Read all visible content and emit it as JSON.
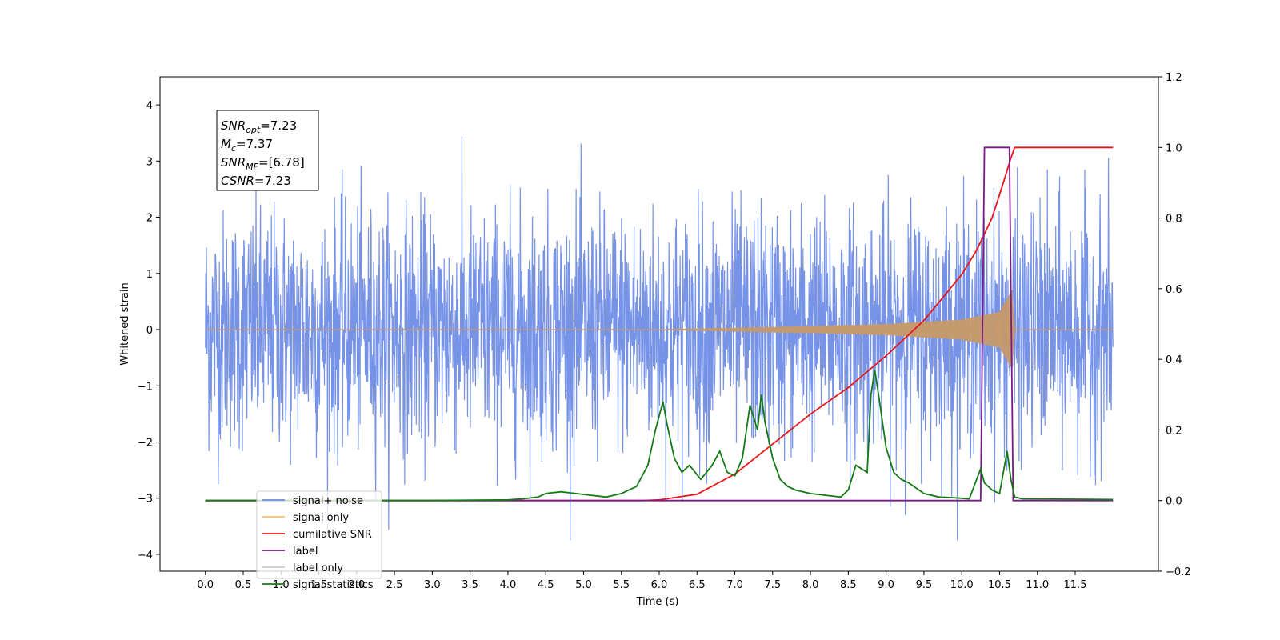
{
  "chart_data": {
    "type": "line",
    "title": "",
    "xlabel": "Time (s)",
    "ylabel": "Whitened strain",
    "x_ticks": [
      "0.0",
      "0.5",
      "1.0",
      "1.5",
      "2.0",
      "2.5",
      "3.0",
      "3.5",
      "4.0",
      "4.5",
      "5.0",
      "5.5",
      "6.0",
      "6.5",
      "7.0",
      "7.5",
      "8.0",
      "8.5",
      "9.0",
      "9.5",
      "10.0",
      "10.5",
      "11.0",
      "11.5"
    ],
    "xlim": [
      -0.6,
      12.6
    ],
    "ylim": [
      -4.3,
      4.5
    ],
    "y_ticks": [
      "4",
      "3",
      "2",
      "1",
      "0",
      "−1",
      "−2",
      "−3",
      "−4"
    ],
    "y2lim": [
      -0.2,
      1.2
    ],
    "y2_ticks": [
      "1.2",
      "1.0",
      "0.8",
      "0.6",
      "0.4",
      "0.2",
      "0.0",
      "−0.2"
    ],
    "grid": false,
    "legend_position": "lower-left",
    "annotation": {
      "lines": [
        {
          "main": "SNR",
          "sub": "opt",
          "rest": "=7.23"
        },
        {
          "main": "M",
          "sub": "c",
          "rest": "=7.37"
        },
        {
          "main": "SNR",
          "sub": "MF",
          "rest": "=[6.78]"
        },
        {
          "main": "CSNR",
          "sub": "",
          "rest": "=7.23"
        }
      ]
    },
    "series": [
      {
        "name": "signal+ noise",
        "color": "#6a8ae6",
        "axis": "left",
        "description_kind": "noise",
        "std": 1.0,
        "x_range": [
          0.0,
          12.0
        ]
      },
      {
        "name": "signal only",
        "color": "#ffbf5e",
        "axis": "left",
        "description_kind": "chirp",
        "envelope": {
          "x": [
            0.0,
            6.0,
            7.0,
            8.0,
            9.0,
            10.0,
            10.5,
            10.67,
            10.7,
            12.0
          ],
          "y": [
            0.0,
            0.005,
            0.03,
            0.06,
            0.1,
            0.18,
            0.32,
            0.72,
            0.0,
            0.0
          ]
        }
      },
      {
        "name": "cumilative SNR",
        "color": "#e8161a",
        "axis": "right",
        "x": [
          0.0,
          5.8,
          6.0,
          6.5,
          7.0,
          7.5,
          8.0,
          8.5,
          9.0,
          9.5,
          10.0,
          10.2,
          10.4,
          10.55,
          10.65,
          10.7,
          12.0
        ],
        "y": [
          0.0,
          0.0,
          0.002,
          0.018,
          0.075,
          0.16,
          0.245,
          0.32,
          0.41,
          0.51,
          0.64,
          0.71,
          0.8,
          0.9,
          0.97,
          1.0,
          1.0
        ]
      },
      {
        "name": "label",
        "color": "#7a1a8a",
        "axis": "right",
        "x": [
          0.0,
          10.25,
          10.3,
          10.63,
          10.68,
          12.0
        ],
        "y": [
          0.0,
          0.0,
          1.0,
          1.0,
          0.0,
          0.0
        ]
      },
      {
        "name": "label only",
        "color": "#d0d0d0",
        "axis": "right",
        "hidden": true,
        "x": [],
        "y": []
      },
      {
        "name": "signal statistics",
        "color": "#147a14",
        "axis": "right",
        "x": [
          0.0,
          3.0,
          4.0,
          4.2,
          4.4,
          4.5,
          4.7,
          4.9,
          5.1,
          5.3,
          5.5,
          5.7,
          5.85,
          5.95,
          6.05,
          6.1,
          6.2,
          6.3,
          6.4,
          6.55,
          6.7,
          6.8,
          6.9,
          7.0,
          7.1,
          7.2,
          7.3,
          7.35,
          7.4,
          7.5,
          7.6,
          7.7,
          7.8,
          8.0,
          8.2,
          8.4,
          8.5,
          8.6,
          8.75,
          8.8,
          8.85,
          8.9,
          9.0,
          9.1,
          9.2,
          9.3,
          9.5,
          9.7,
          9.9,
          10.1,
          10.25,
          10.3,
          10.4,
          10.5,
          10.6,
          10.65,
          10.7,
          10.8,
          12.0
        ],
        "y": [
          0.0,
          0.0,
          0.002,
          0.005,
          0.01,
          0.02,
          0.025,
          0.02,
          0.015,
          0.01,
          0.02,
          0.04,
          0.1,
          0.2,
          0.28,
          0.22,
          0.12,
          0.08,
          0.1,
          0.06,
          0.1,
          0.14,
          0.08,
          0.07,
          0.12,
          0.27,
          0.2,
          0.3,
          0.22,
          0.12,
          0.06,
          0.04,
          0.03,
          0.02,
          0.015,
          0.01,
          0.03,
          0.1,
          0.08,
          0.3,
          0.37,
          0.3,
          0.15,
          0.08,
          0.06,
          0.05,
          0.02,
          0.01,
          0.008,
          0.005,
          0.09,
          0.05,
          0.03,
          0.02,
          0.14,
          0.06,
          0.01,
          0.005,
          0.003
        ]
      }
    ]
  }
}
